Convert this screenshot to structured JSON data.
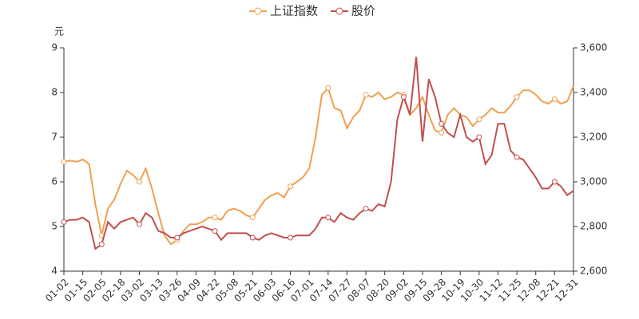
{
  "chart_data": {
    "type": "line",
    "y_label": "元",
    "categories": [
      "01-02",
      null,
      null,
      "01-15",
      null,
      null,
      "02-05",
      null,
      null,
      "02-18",
      null,
      null,
      "03-02",
      null,
      null,
      "03-13",
      null,
      null,
      "03-26",
      null,
      null,
      "04-09",
      null,
      null,
      "04-22",
      null,
      null,
      "05-08",
      null,
      null,
      "05-21",
      null,
      null,
      "06-03",
      null,
      null,
      "06-16",
      null,
      null,
      "07-01",
      null,
      null,
      "07-14",
      null,
      null,
      "07-27",
      null,
      null,
      "08-07",
      null,
      null,
      "08-20",
      null,
      null,
      "09-02",
      null,
      null,
      "09-15",
      null,
      null,
      "09-28",
      null,
      null,
      "10-19",
      null,
      null,
      "10-30",
      null,
      null,
      "11-12",
      null,
      null,
      "11-25",
      null,
      null,
      "12-08",
      null,
      null,
      "12-21",
      null,
      null,
      "12-31"
    ],
    "series": [
      {
        "name": "上证指数",
        "color": "#f0a050",
        "axis": "y2",
        "values": [
          3090,
          3095,
          3090,
          3100,
          3080,
          2900,
          2760,
          2880,
          2920,
          2990,
          3050,
          3030,
          3000,
          3060,
          2970,
          2860,
          2760,
          2720,
          2740,
          2780,
          2810,
          2810,
          2820,
          2840,
          2840,
          2830,
          2870,
          2880,
          2870,
          2850,
          2840,
          2880,
          2920,
          2940,
          2950,
          2930,
          2980,
          3000,
          3020,
          3060,
          3200,
          3390,
          3420,
          3330,
          3320,
          3240,
          3290,
          3320,
          3390,
          3380,
          3400,
          3370,
          3380,
          3400,
          3390,
          3300,
          3330,
          3380,
          3300,
          3230,
          3220,
          3300,
          3330,
          3300,
          3290,
          3250,
          3280,
          3300,
          3330,
          3310,
          3310,
          3340,
          3380,
          3410,
          3410,
          3390,
          3360,
          3350,
          3370,
          3350,
          3360,
          3430
        ]
      },
      {
        "name": "股价",
        "color": "#c0504d",
        "values": [
          5.1,
          5.15,
          5.15,
          5.2,
          5.1,
          4.5,
          4.6,
          5.1,
          4.95,
          5.1,
          5.15,
          5.2,
          5.05,
          5.3,
          5.2,
          4.9,
          4.85,
          4.75,
          4.75,
          4.85,
          4.9,
          4.95,
          5.0,
          4.95,
          4.9,
          4.7,
          4.85,
          4.85,
          4.85,
          4.85,
          4.75,
          4.7,
          4.8,
          4.85,
          4.8,
          4.75,
          4.75,
          4.8,
          4.8,
          4.8,
          4.95,
          5.2,
          5.2,
          5.1,
          5.3,
          5.2,
          5.15,
          5.3,
          5.4,
          5.35,
          5.5,
          5.45,
          6.0,
          7.4,
          7.9,
          7.5,
          8.8,
          6.9,
          8.3,
          7.9,
          7.3,
          7.1,
          7.0,
          7.5,
          7.0,
          6.9,
          7.0,
          6.4,
          6.6,
          7.3,
          7.3,
          6.7,
          6.55,
          6.5,
          6.3,
          6.1,
          5.85,
          5.85,
          6.0,
          5.9,
          5.7,
          5.8
        ]
      }
    ],
    "ylim": [
      4,
      9
    ],
    "yticks": [
      4,
      5,
      6,
      7,
      8,
      9
    ],
    "y2lim": [
      2600,
      3600
    ],
    "y2ticks": [
      {
        "value": 2600,
        "label": "2,600"
      },
      {
        "value": 2800,
        "label": "2,800"
      },
      {
        "value": 3000,
        "label": "3,000"
      },
      {
        "value": 3200,
        "label": "3,200"
      },
      {
        "value": 3400,
        "label": "3,400"
      },
      {
        "value": 3600,
        "label": "3,600"
      }
    ],
    "legend": "top"
  }
}
